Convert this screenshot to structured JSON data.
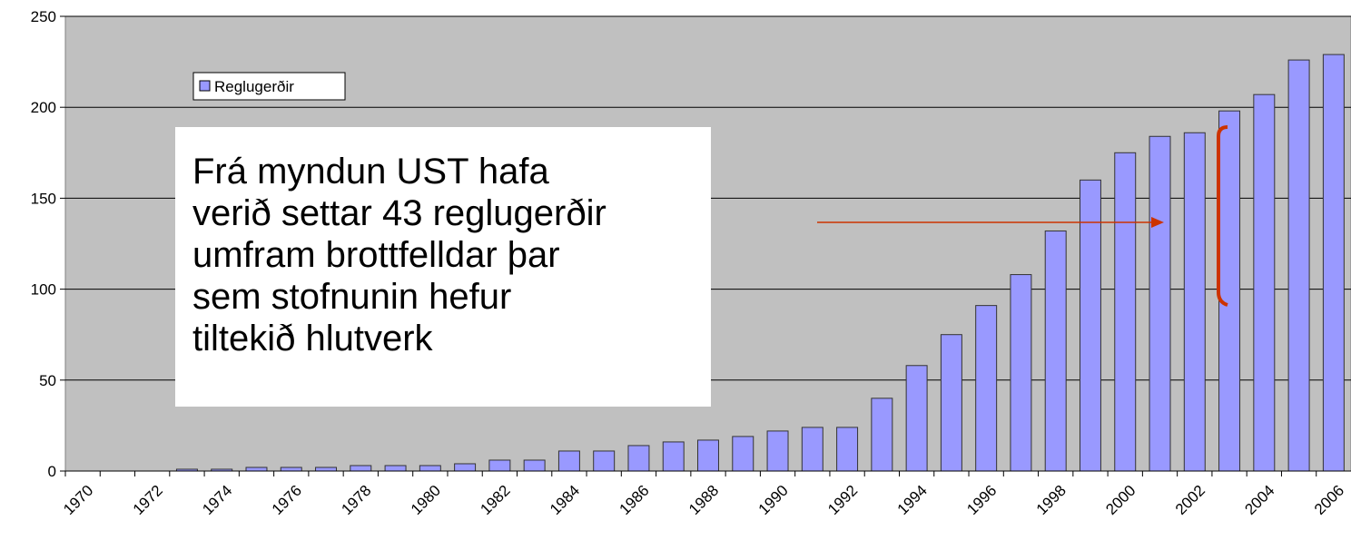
{
  "chart_data": {
    "type": "bar",
    "categories": [
      "1970",
      null,
      "1972",
      null,
      "1974",
      null,
      "1976",
      null,
      "1978",
      null,
      "1980",
      null,
      "1982",
      null,
      "1984",
      null,
      "1986",
      null,
      "1988",
      null,
      "1990",
      null,
      "1992",
      null,
      "1994",
      null,
      "1996",
      null,
      "1998",
      null,
      "2000",
      null,
      "2002",
      null,
      "2004",
      null,
      "2006"
    ],
    "series": [
      {
        "name": "Reglugerðir",
        "color": "#9999ff",
        "values": [
          0,
          0,
          0,
          1,
          1,
          2,
          2,
          2,
          3,
          3,
          3,
          4,
          6,
          6,
          11,
          11,
          14,
          16,
          17,
          19,
          22,
          24,
          24,
          40,
          58,
          75,
          91,
          108,
          132,
          160,
          175,
          184,
          186,
          198,
          207,
          226,
          229
        ]
      }
    ],
    "ylim": [
      0,
      250
    ],
    "yticks": [
      0,
      50,
      100,
      150,
      200,
      250
    ],
    "grid": true,
    "annotations": [
      "Frá myndun UST hafa",
      "verið settar 43 reglugerðir",
      "umfram brottfelldar þar",
      "sem stofnunin hefur",
      "tiltekið hlutverk"
    ]
  }
}
